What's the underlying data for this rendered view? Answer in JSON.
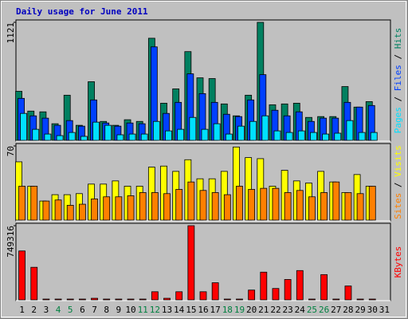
{
  "title": "Daily usage for June 2011",
  "categories": [
    "1",
    "2",
    "3",
    "4",
    "5",
    "6",
    "7",
    "8",
    "9",
    "10",
    "11",
    "12",
    "13",
    "14",
    "15",
    "16",
    "17",
    "18",
    "19",
    "20",
    "21",
    "22",
    "23",
    "24",
    "25",
    "26",
    "27",
    "28",
    "29",
    "30",
    "31"
  ],
  "category_colors": [
    "#000000",
    "#000000",
    "#000000",
    "#008040",
    "#008040",
    "#000000",
    "#000000",
    "#000000",
    "#000000",
    "#000000",
    "#008040",
    "#008040",
    "#000000",
    "#000000",
    "#000000",
    "#000000",
    "#000000",
    "#008040",
    "#008040",
    "#000000",
    "#000000",
    "#000000",
    "#000000",
    "#000000",
    "#008040",
    "#008040",
    "#000000",
    "#000000",
    "#000000",
    "#000000",
    "#000000"
  ],
  "chart_data": [
    {
      "type": "bar",
      "ylim": [
        0,
        1121
      ],
      "yticks": [
        1121
      ],
      "series": [
        {
          "name": "Hits",
          "color": "#008060",
          "values": [
            466,
            278,
            271,
            158,
            429,
            143,
            557,
            180,
            143,
            196,
            180,
            970,
            353,
            489,
            843,
            594,
            587,
            346,
            233,
            429,
            1121,
            338,
            346,
            353,
            218,
            226,
            226,
            511,
            316,
            368,
            null
          ]
        },
        {
          "name": "Files",
          "color": "#0040ff",
          "values": [
            399,
            233,
            211,
            143,
            188,
            135,
            384,
            165,
            135,
            165,
            158,
            888,
            256,
            361,
            632,
            444,
            361,
            248,
            226,
            384,
            624,
            286,
            233,
            271,
            180,
            211,
            211,
            361,
            316,
            331,
            null
          ]
        },
        {
          "name": "Pages",
          "color": "#00e0ff",
          "values": [
            256,
            105,
            60,
            45,
            75,
            38,
            173,
            143,
            53,
            60,
            60,
            180,
            90,
            105,
            218,
            105,
            158,
            60,
            135,
            180,
            233,
            90,
            75,
            90,
            75,
            60,
            68,
            188,
            75,
            75,
            null
          ]
        }
      ]
    },
    {
      "type": "bar",
      "ylim": [
        0,
        70
      ],
      "yticks": [
        70
      ],
      "series": [
        {
          "name": "Visits",
          "color": "#ffff00",
          "values": [
            55,
            32,
            18,
            24,
            24,
            25,
            34,
            34,
            37,
            32,
            32,
            50,
            51,
            46,
            57,
            39,
            39,
            46,
            69,
            59,
            58,
            32,
            47,
            37,
            35,
            46,
            36,
            26,
            43,
            32,
            null
          ]
        },
        {
          "name": "Sites",
          "color": "#ff8000",
          "values": [
            32,
            32,
            18,
            19,
            14,
            15,
            20,
            22,
            22,
            23,
            26,
            26,
            25,
            29,
            36,
            28,
            26,
            24,
            32,
            29,
            30,
            30,
            26,
            28,
            22,
            26,
            36,
            26,
            25,
            32,
            null
          ]
        }
      ]
    },
    {
      "type": "bar",
      "ylim": [
        0,
        749316
      ],
      "yticks": [
        749316
      ],
      "series": [
        {
          "name": "KBytes",
          "color": "#ff0000",
          "values": [
            494000,
            329000,
            8000,
            8000,
            8000,
            8000,
            16000,
            8000,
            8000,
            8000,
            8000,
            82000,
            16000,
            82000,
            749316,
            82000,
            173000,
            8000,
            8000,
            99000,
            280000,
            115000,
            206000,
            296000,
            8000,
            255000,
            8000,
            140000,
            8000,
            8000,
            null
          ]
        }
      ]
    }
  ]
}
